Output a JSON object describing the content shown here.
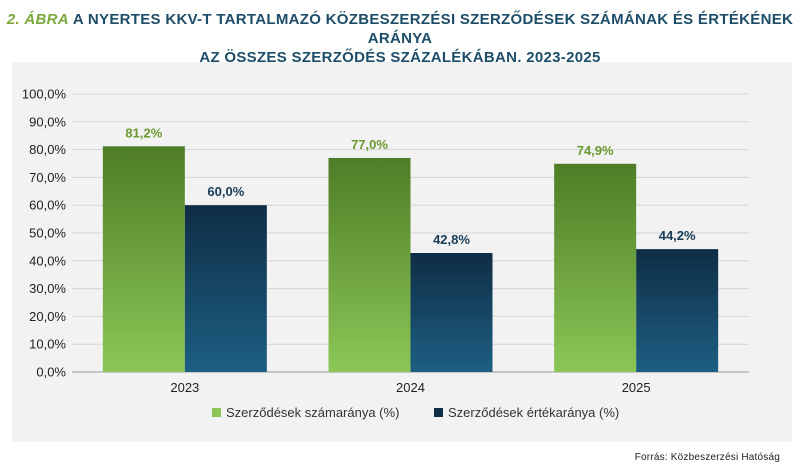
{
  "title": {
    "lead": "2. ÁBRA",
    "line1": "A NYERTES KKV-T TARTALMAZÓ KÖZBESZERZÉSI SZERZŐDÉSEK SZÁMÁNAK ÉS ÉRTÉKÉNEK ARÁNYA",
    "line2": "AZ ÖSSZES SZERZŐDÉS SZÁZALÉKÁBAN, 2023-2025"
  },
  "source": "Forrás: Közbeszerzési Hatóság",
  "chart_data": {
    "type": "bar",
    "categories": [
      "2023",
      "2024",
      "2025"
    ],
    "series": [
      {
        "name": "Szerződések számaránya (%)",
        "values": [
          81.2,
          77.0,
          74.9
        ],
        "labels": [
          "81,2%",
          "77,0%",
          "74,9%"
        ],
        "color_top": "#4e7d26",
        "color_bottom": "#8cc657",
        "label_color": "#6a9a2e"
      },
      {
        "name": "Szerződések értékaránya (%)",
        "values": [
          60.0,
          42.8,
          44.2
        ],
        "labels": [
          "60,0%",
          "42,8%",
          "44,2%"
        ],
        "color_top": "#0f2d45",
        "color_bottom": "#1d5f83",
        "label_color": "#163c57"
      }
    ],
    "ylim": [
      0,
      100
    ],
    "ytick_values": [
      0,
      10,
      20,
      30,
      40,
      50,
      60,
      70,
      80,
      90,
      100
    ],
    "ytick_labels": [
      "0,0%",
      "10,0%",
      "20,0%",
      "30,0%",
      "40,0%",
      "50,0%",
      "60,0%",
      "70,0%",
      "80,0%",
      "90,0%",
      "100,0%"
    ],
    "grid": true,
    "legend_position": "bottom"
  }
}
